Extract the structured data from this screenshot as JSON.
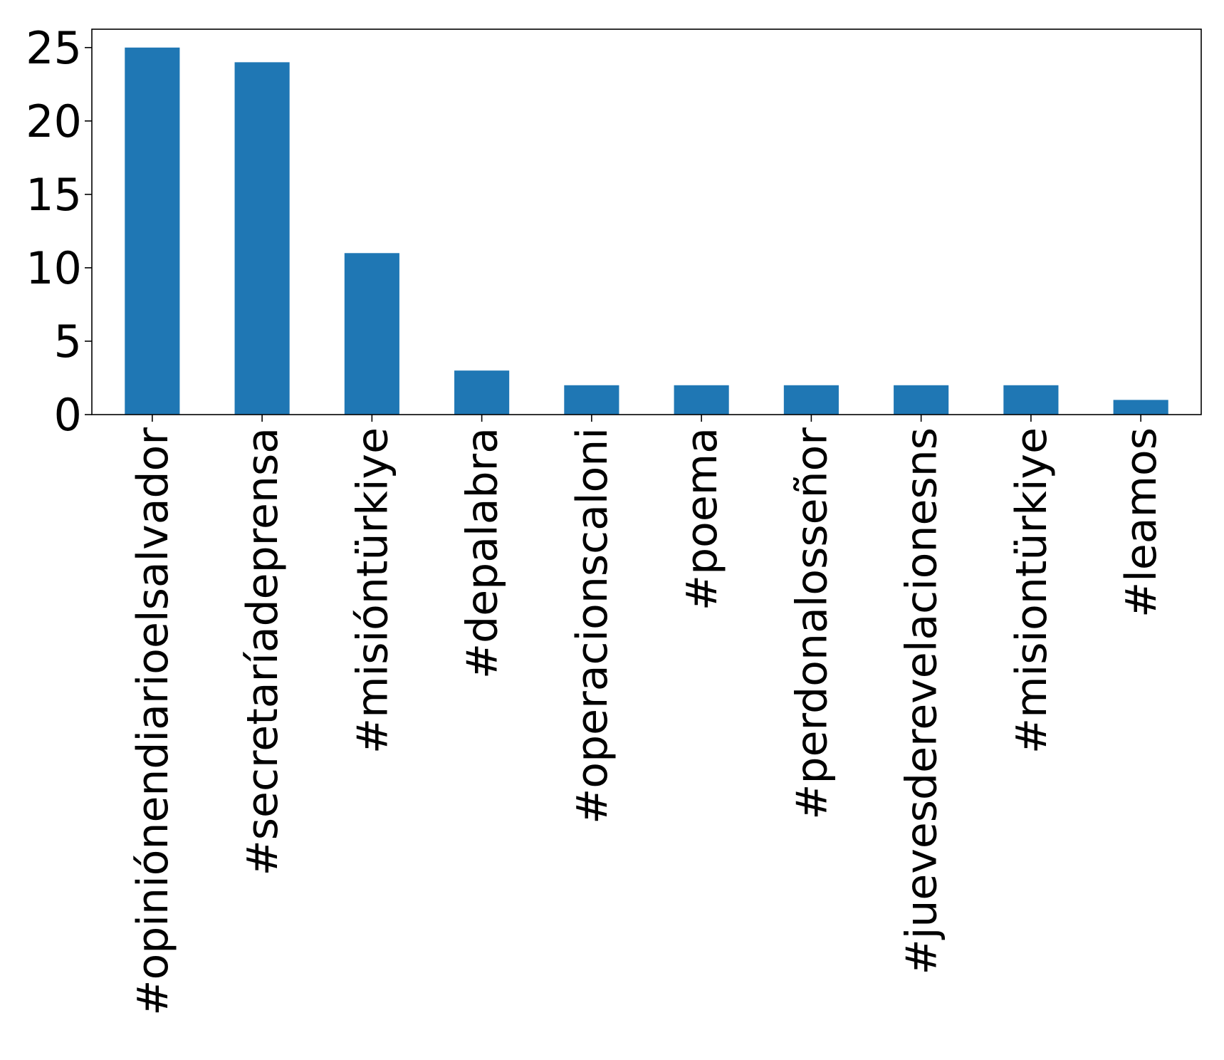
{
  "chart_data": {
    "type": "bar",
    "categories": [
      "#opiniónendiarioelsalvador",
      "#secretaríadeprensa",
      "#misióntürkiye",
      "#depalabra",
      "#operacionscaloni",
      "#poema",
      "#perdonalosseñor",
      "#juevesderevelacionesns",
      "#misiontürkiye",
      "#leamos"
    ],
    "values": [
      25,
      24,
      11,
      3,
      2,
      2,
      2,
      2,
      2,
      1
    ],
    "title": "",
    "xlabel": "",
    "ylabel": "",
    "ylim": [
      0,
      26.25
    ],
    "yticks": [
      0,
      5,
      10,
      15,
      20,
      25
    ],
    "grid": false,
    "bar_color": "#1f77b4"
  }
}
